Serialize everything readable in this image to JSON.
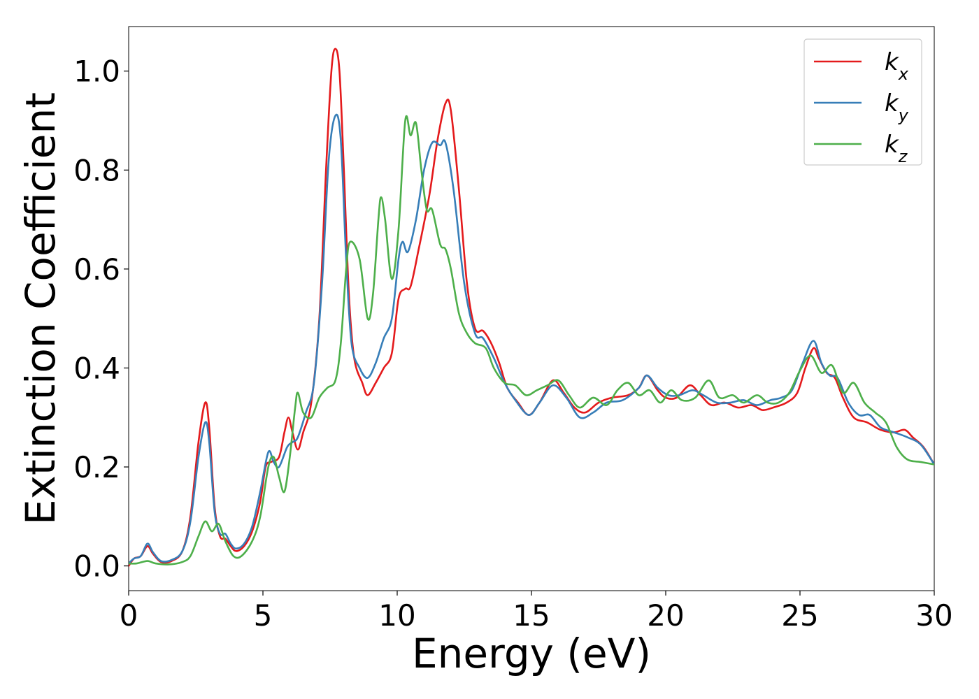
{
  "chart_data": {
    "type": "line",
    "xlabel": "Energy (eV)",
    "ylabel": "Extinction Coefficient",
    "xlim": [
      0,
      30
    ],
    "ylim": [
      -0.05,
      1.09
    ],
    "xticks": [
      0,
      5,
      10,
      15,
      20,
      25,
      30
    ],
    "xtick_labels": [
      "0",
      "5",
      "10",
      "15",
      "20",
      "25",
      "30"
    ],
    "yticks": [
      0.0,
      0.2,
      0.4,
      0.6,
      0.8,
      1.0
    ],
    "ytick_labels": [
      "0.0",
      "0.2",
      "0.4",
      "0.6",
      "0.8",
      "1.0"
    ],
    "grid": false,
    "legend_position": "top-right",
    "series": [
      {
        "name": "kx",
        "legend_base": "k",
        "legend_sub": "x",
        "color": "#e41a1c",
        "points": [
          [
            0,
            0.0
          ],
          [
            0.2,
            0.015
          ],
          [
            0.45,
            0.02
          ],
          [
            0.7,
            0.04
          ],
          [
            0.9,
            0.025
          ],
          [
            1.2,
            0.008
          ],
          [
            1.6,
            0.01
          ],
          [
            2.0,
            0.03
          ],
          [
            2.3,
            0.1
          ],
          [
            2.6,
            0.25
          ],
          [
            2.85,
            0.33
          ],
          [
            3.0,
            0.28
          ],
          [
            3.2,
            0.12
          ],
          [
            3.4,
            0.06
          ],
          [
            3.6,
            0.055
          ],
          [
            3.8,
            0.04
          ],
          [
            4.0,
            0.03
          ],
          [
            4.3,
            0.04
          ],
          [
            4.6,
            0.07
          ],
          [
            4.9,
            0.13
          ],
          [
            5.1,
            0.2
          ],
          [
            5.3,
            0.21
          ],
          [
            5.6,
            0.22
          ],
          [
            5.8,
            0.27
          ],
          [
            5.95,
            0.3
          ],
          [
            6.1,
            0.27
          ],
          [
            6.3,
            0.235
          ],
          [
            6.5,
            0.27
          ],
          [
            6.8,
            0.33
          ],
          [
            7.1,
            0.5
          ],
          [
            7.35,
            0.8
          ],
          [
            7.55,
            1.0
          ],
          [
            7.7,
            1.045
          ],
          [
            7.85,
            1.0
          ],
          [
            8.0,
            0.82
          ],
          [
            8.2,
            0.55
          ],
          [
            8.4,
            0.42
          ],
          [
            8.7,
            0.37
          ],
          [
            8.9,
            0.345
          ],
          [
            9.2,
            0.37
          ],
          [
            9.5,
            0.4
          ],
          [
            9.8,
            0.43
          ],
          [
            10.05,
            0.54
          ],
          [
            10.3,
            0.56
          ],
          [
            10.5,
            0.565
          ],
          [
            10.8,
            0.64
          ],
          [
            11.2,
            0.75
          ],
          [
            11.5,
            0.86
          ],
          [
            11.8,
            0.935
          ],
          [
            12.0,
            0.92
          ],
          [
            12.3,
            0.76
          ],
          [
            12.6,
            0.57
          ],
          [
            12.9,
            0.48
          ],
          [
            13.2,
            0.475
          ],
          [
            13.5,
            0.45
          ],
          [
            13.8,
            0.41
          ],
          [
            14.1,
            0.36
          ],
          [
            14.5,
            0.33
          ],
          [
            14.9,
            0.305
          ],
          [
            15.3,
            0.33
          ],
          [
            15.8,
            0.375
          ],
          [
            16.2,
            0.35
          ],
          [
            16.6,
            0.32
          ],
          [
            17.0,
            0.31
          ],
          [
            17.5,
            0.33
          ],
          [
            18.0,
            0.34
          ],
          [
            18.6,
            0.345
          ],
          [
            19.0,
            0.36
          ],
          [
            19.3,
            0.385
          ],
          [
            19.7,
            0.355
          ],
          [
            20.0,
            0.34
          ],
          [
            20.4,
            0.34
          ],
          [
            20.9,
            0.365
          ],
          [
            21.3,
            0.345
          ],
          [
            21.7,
            0.325
          ],
          [
            22.2,
            0.33
          ],
          [
            22.7,
            0.32
          ],
          [
            23.2,
            0.325
          ],
          [
            23.6,
            0.315
          ],
          [
            24.0,
            0.32
          ],
          [
            24.5,
            0.33
          ],
          [
            24.9,
            0.35
          ],
          [
            25.2,
            0.4
          ],
          [
            25.5,
            0.44
          ],
          [
            25.7,
            0.42
          ],
          [
            26.0,
            0.39
          ],
          [
            26.3,
            0.38
          ],
          [
            26.6,
            0.34
          ],
          [
            27.0,
            0.3
          ],
          [
            27.5,
            0.29
          ],
          [
            28.0,
            0.275
          ],
          [
            28.5,
            0.27
          ],
          [
            28.9,
            0.275
          ],
          [
            29.2,
            0.26
          ],
          [
            29.6,
            0.24
          ],
          [
            30.0,
            0.205
          ]
        ]
      },
      {
        "name": "ky",
        "legend_base": "k",
        "legend_sub": "y",
        "color": "#377eb8",
        "points": [
          [
            0,
            0.005
          ],
          [
            0.2,
            0.015
          ],
          [
            0.45,
            0.02
          ],
          [
            0.7,
            0.045
          ],
          [
            0.9,
            0.028
          ],
          [
            1.2,
            0.01
          ],
          [
            1.6,
            0.012
          ],
          [
            2.0,
            0.03
          ],
          [
            2.3,
            0.09
          ],
          [
            2.6,
            0.22
          ],
          [
            2.85,
            0.29
          ],
          [
            3.0,
            0.25
          ],
          [
            3.2,
            0.11
          ],
          [
            3.4,
            0.065
          ],
          [
            3.6,
            0.065
          ],
          [
            3.8,
            0.045
          ],
          [
            4.0,
            0.035
          ],
          [
            4.3,
            0.045
          ],
          [
            4.6,
            0.08
          ],
          [
            4.9,
            0.15
          ],
          [
            5.2,
            0.23
          ],
          [
            5.4,
            0.21
          ],
          [
            5.6,
            0.2
          ],
          [
            5.9,
            0.24
          ],
          [
            6.1,
            0.25
          ],
          [
            6.3,
            0.26
          ],
          [
            6.6,
            0.31
          ],
          [
            6.9,
            0.37
          ],
          [
            7.2,
            0.57
          ],
          [
            7.45,
            0.82
          ],
          [
            7.7,
            0.91
          ],
          [
            7.9,
            0.86
          ],
          [
            8.1,
            0.62
          ],
          [
            8.3,
            0.45
          ],
          [
            8.6,
            0.4
          ],
          [
            8.9,
            0.38
          ],
          [
            9.2,
            0.41
          ],
          [
            9.5,
            0.46
          ],
          [
            9.8,
            0.5
          ],
          [
            10.05,
            0.62
          ],
          [
            10.2,
            0.655
          ],
          [
            10.4,
            0.635
          ],
          [
            10.7,
            0.7
          ],
          [
            11.0,
            0.8
          ],
          [
            11.3,
            0.855
          ],
          [
            11.6,
            0.85
          ],
          [
            11.8,
            0.855
          ],
          [
            12.1,
            0.76
          ],
          [
            12.5,
            0.57
          ],
          [
            12.9,
            0.47
          ],
          [
            13.2,
            0.46
          ],
          [
            13.6,
            0.42
          ],
          [
            14.0,
            0.37
          ],
          [
            14.4,
            0.335
          ],
          [
            14.9,
            0.305
          ],
          [
            15.3,
            0.33
          ],
          [
            15.8,
            0.365
          ],
          [
            16.3,
            0.34
          ],
          [
            16.8,
            0.3
          ],
          [
            17.3,
            0.31
          ],
          [
            17.8,
            0.33
          ],
          [
            18.4,
            0.335
          ],
          [
            19.0,
            0.36
          ],
          [
            19.3,
            0.385
          ],
          [
            19.7,
            0.36
          ],
          [
            20.1,
            0.345
          ],
          [
            20.5,
            0.345
          ],
          [
            21.0,
            0.355
          ],
          [
            21.4,
            0.345
          ],
          [
            21.9,
            0.33
          ],
          [
            22.4,
            0.33
          ],
          [
            22.9,
            0.335
          ],
          [
            23.4,
            0.325
          ],
          [
            23.9,
            0.335
          ],
          [
            24.3,
            0.34
          ],
          [
            24.7,
            0.355
          ],
          [
            25.1,
            0.41
          ],
          [
            25.5,
            0.455
          ],
          [
            25.8,
            0.41
          ],
          [
            26.1,
            0.385
          ],
          [
            26.4,
            0.38
          ],
          [
            26.8,
            0.33
          ],
          [
            27.2,
            0.305
          ],
          [
            27.6,
            0.305
          ],
          [
            28.0,
            0.28
          ],
          [
            28.5,
            0.27
          ],
          [
            29.0,
            0.26
          ],
          [
            29.5,
            0.245
          ],
          [
            30.0,
            0.205
          ]
        ]
      },
      {
        "name": "kz",
        "legend_base": "k",
        "legend_sub": "z",
        "color": "#4daf4a",
        "points": [
          [
            0,
            0.005
          ],
          [
            0.3,
            0.005
          ],
          [
            0.7,
            0.01
          ],
          [
            1.0,
            0.005
          ],
          [
            1.5,
            0.003
          ],
          [
            2.0,
            0.008
          ],
          [
            2.3,
            0.02
          ],
          [
            2.6,
            0.06
          ],
          [
            2.85,
            0.09
          ],
          [
            3.1,
            0.07
          ],
          [
            3.35,
            0.085
          ],
          [
            3.6,
            0.05
          ],
          [
            3.9,
            0.02
          ],
          [
            4.2,
            0.02
          ],
          [
            4.6,
            0.05
          ],
          [
            4.9,
            0.1
          ],
          [
            5.2,
            0.2
          ],
          [
            5.4,
            0.22
          ],
          [
            5.6,
            0.18
          ],
          [
            5.8,
            0.15
          ],
          [
            6.0,
            0.22
          ],
          [
            6.2,
            0.32
          ],
          [
            6.3,
            0.35
          ],
          [
            6.5,
            0.31
          ],
          [
            6.8,
            0.3
          ],
          [
            7.1,
            0.34
          ],
          [
            7.4,
            0.36
          ],
          [
            7.7,
            0.375
          ],
          [
            7.9,
            0.45
          ],
          [
            8.1,
            0.6
          ],
          [
            8.25,
            0.655
          ],
          [
            8.6,
            0.62
          ],
          [
            8.9,
            0.5
          ],
          [
            9.1,
            0.55
          ],
          [
            9.3,
            0.7
          ],
          [
            9.4,
            0.745
          ],
          [
            9.55,
            0.7
          ],
          [
            9.8,
            0.58
          ],
          [
            10.05,
            0.68
          ],
          [
            10.3,
            0.9
          ],
          [
            10.5,
            0.87
          ],
          [
            10.7,
            0.895
          ],
          [
            10.9,
            0.8
          ],
          [
            11.1,
            0.72
          ],
          [
            11.3,
            0.72
          ],
          [
            11.6,
            0.65
          ],
          [
            11.8,
            0.64
          ],
          [
            12.0,
            0.6
          ],
          [
            12.3,
            0.51
          ],
          [
            12.6,
            0.47
          ],
          [
            12.9,
            0.45
          ],
          [
            13.3,
            0.44
          ],
          [
            13.6,
            0.4
          ],
          [
            14.0,
            0.37
          ],
          [
            14.4,
            0.365
          ],
          [
            14.8,
            0.345
          ],
          [
            15.2,
            0.355
          ],
          [
            15.6,
            0.365
          ],
          [
            16.0,
            0.375
          ],
          [
            16.4,
            0.345
          ],
          [
            16.8,
            0.32
          ],
          [
            17.3,
            0.34
          ],
          [
            17.8,
            0.325
          ],
          [
            18.2,
            0.355
          ],
          [
            18.6,
            0.37
          ],
          [
            19.0,
            0.345
          ],
          [
            19.4,
            0.355
          ],
          [
            19.8,
            0.33
          ],
          [
            20.2,
            0.355
          ],
          [
            20.6,
            0.335
          ],
          [
            21.1,
            0.34
          ],
          [
            21.6,
            0.375
          ],
          [
            22.0,
            0.34
          ],
          [
            22.5,
            0.345
          ],
          [
            22.9,
            0.33
          ],
          [
            23.4,
            0.345
          ],
          [
            23.8,
            0.33
          ],
          [
            24.2,
            0.33
          ],
          [
            24.6,
            0.35
          ],
          [
            25.0,
            0.395
          ],
          [
            25.4,
            0.425
          ],
          [
            25.8,
            0.39
          ],
          [
            26.2,
            0.405
          ],
          [
            26.6,
            0.35
          ],
          [
            27.0,
            0.37
          ],
          [
            27.4,
            0.33
          ],
          [
            27.8,
            0.31
          ],
          [
            28.2,
            0.29
          ],
          [
            28.6,
            0.24
          ],
          [
            29.0,
            0.215
          ],
          [
            29.5,
            0.21
          ],
          [
            30.0,
            0.205
          ]
        ]
      }
    ]
  }
}
